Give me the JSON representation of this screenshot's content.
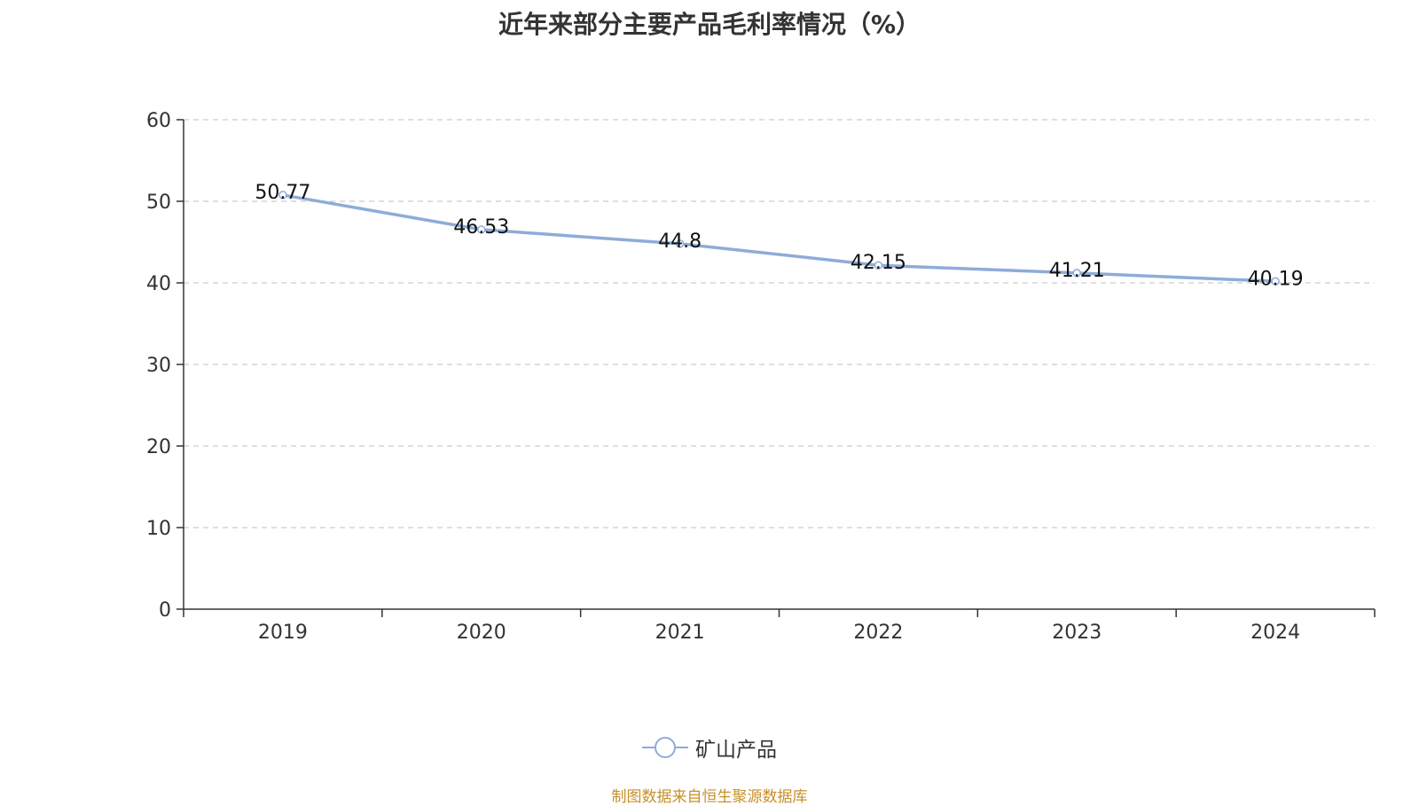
{
  "chart_data": {
    "type": "line",
    "title": "近年来部分主要产品毛利率情况（%）",
    "categories": [
      "2019",
      "2020",
      "2021",
      "2022",
      "2023",
      "2024"
    ],
    "series": [
      {
        "name": "矿山产品",
        "values": [
          50.77,
          46.53,
          44.8,
          42.15,
          41.21,
          40.19
        ],
        "value_labels": [
          "50.77",
          "46.53",
          "44.8",
          "42.15",
          "41.21",
          "40.19"
        ],
        "color": "#8eacd8"
      }
    ],
    "ylim": [
      0,
      60
    ],
    "yticks": [
      0,
      10,
      20,
      30,
      40,
      50,
      60
    ],
    "ytick_labels": [
      "0",
      "10",
      "20",
      "30",
      "40",
      "50",
      "60"
    ],
    "grid": true,
    "legend": "bottom-center"
  },
  "footer": {
    "source": "制图数据来自恒生聚源数据库"
  }
}
